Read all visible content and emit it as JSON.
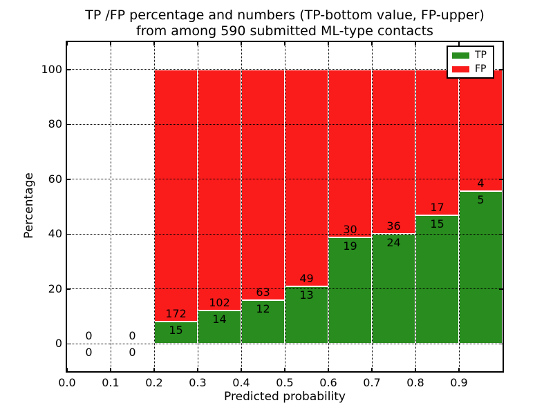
{
  "figure": {
    "title_line1": "TP /FP percentage and numbers (TP-bottom value, FP-upper)",
    "title_line2": "from among 590 submitted ML-type contacts"
  },
  "chart_data": {
    "type": "bar",
    "stacked": true,
    "title": "TP /FP percentage and numbers (TP-bottom value, FP-upper)\nfrom among 590 submitted ML-type contacts",
    "xlabel": "Predicted probability",
    "ylabel": "Percentage",
    "xlim": [
      0.0,
      1.0
    ],
    "ylim": [
      -10,
      110
    ],
    "grid": true,
    "grid_style": "dotted",
    "legend_position": "upper right",
    "bin_width": 0.1,
    "total_contacts": 590,
    "series": [
      {
        "name": "TP",
        "color": "#288c1e"
      },
      {
        "name": "FP",
        "color": "#fa1b1b"
      }
    ],
    "bins": [
      {
        "x0": 0.0,
        "tp": 0,
        "fp": 0
      },
      {
        "x0": 0.1,
        "tp": 0,
        "fp": 0
      },
      {
        "x0": 0.2,
        "tp": 15,
        "fp": 172
      },
      {
        "x0": 0.3,
        "tp": 14,
        "fp": 102
      },
      {
        "x0": 0.4,
        "tp": 12,
        "fp": 63
      },
      {
        "x0": 0.5,
        "tp": 13,
        "fp": 49
      },
      {
        "x0": 0.6,
        "tp": 19,
        "fp": 30
      },
      {
        "x0": 0.7,
        "tp": 24,
        "fp": 36
      },
      {
        "x0": 0.8,
        "tp": 15,
        "fp": 17
      },
      {
        "x0": 0.9,
        "tp": 5,
        "fp": 4
      }
    ],
    "xticks": [
      {
        "v": 0.0,
        "label": "0.0"
      },
      {
        "v": 0.1,
        "label": "0.1"
      },
      {
        "v": 0.2,
        "label": "0.2"
      },
      {
        "v": 0.3,
        "label": "0.3"
      },
      {
        "v": 0.4,
        "label": "0.4"
      },
      {
        "v": 0.5,
        "label": "0.5"
      },
      {
        "v": 0.6,
        "label": "0.6"
      },
      {
        "v": 0.7,
        "label": "0.7"
      },
      {
        "v": 0.8,
        "label": "0.8"
      },
      {
        "v": 0.9,
        "label": "0.9"
      }
    ],
    "yticks": [
      {
        "v": 0,
        "label": "0"
      },
      {
        "v": 20,
        "label": "20"
      },
      {
        "v": 40,
        "label": "40"
      },
      {
        "v": 60,
        "label": "60"
      },
      {
        "v": 80,
        "label": "80"
      },
      {
        "v": 100,
        "label": "100"
      }
    ]
  }
}
